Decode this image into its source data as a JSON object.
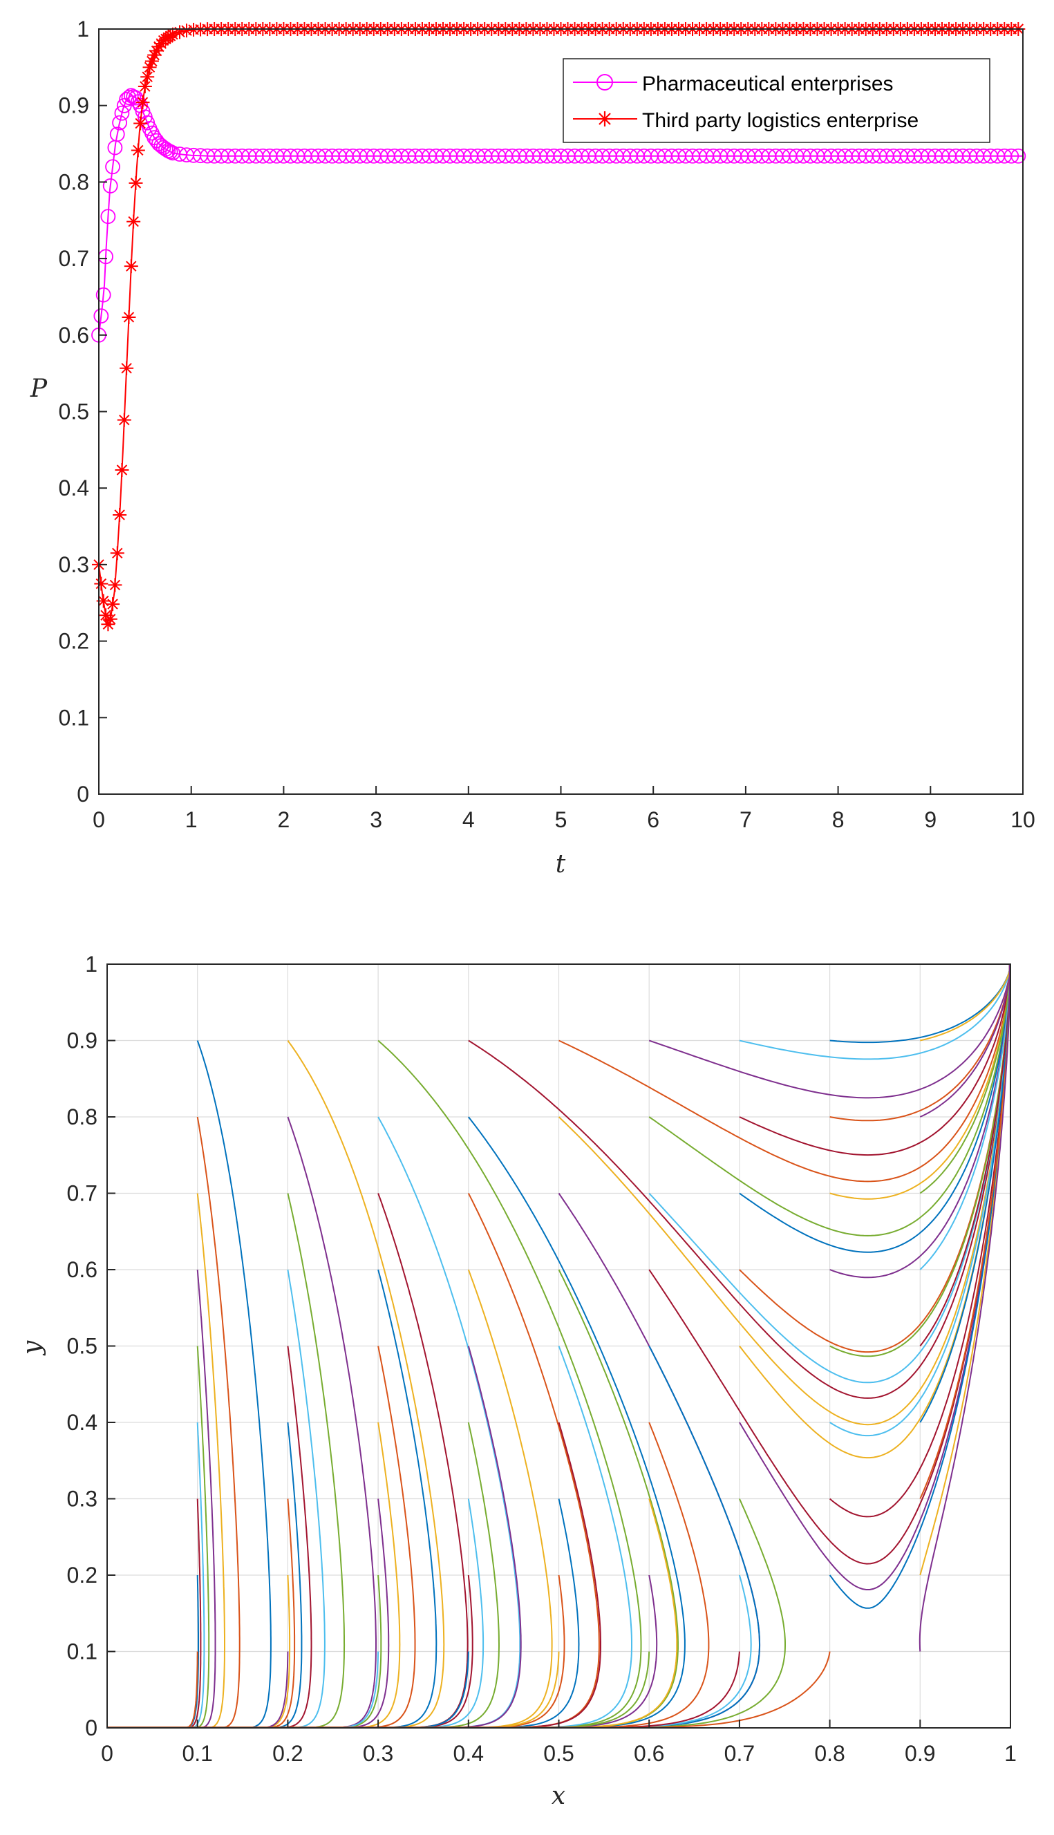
{
  "chart_data": [
    {
      "type": "line",
      "xlabel": "t",
      "ylabel": "P",
      "xlim": [
        0,
        10
      ],
      "ylim": [
        0,
        1
      ],
      "x_ticks": [
        "0",
        "1",
        "2",
        "3",
        "4",
        "5",
        "6",
        "7",
        "8",
        "9",
        "10"
      ],
      "y_ticks": [
        "0",
        "0.1",
        "0.2",
        "0.3",
        "0.4",
        "0.5",
        "0.6",
        "0.7",
        "0.8",
        "0.9",
        "1"
      ],
      "grid": false,
      "legend_position": "top-right",
      "series": [
        {
          "name": "Pharmaceutical enterprises",
          "color": "#ff00ff",
          "marker": "circle",
          "points": [
            [
              0,
              0.6
            ],
            [
              0.02,
              0.62
            ],
            [
              0.04,
              0.64
            ],
            [
              0.06,
              0.665
            ],
            [
              0.08,
              0.715
            ],
            [
              0.1,
              0.755
            ],
            [
              0.12,
              0.79
            ],
            [
              0.15,
              0.82
            ],
            [
              0.18,
              0.85
            ],
            [
              0.22,
              0.875
            ],
            [
              0.26,
              0.895
            ],
            [
              0.3,
              0.908
            ],
            [
              0.35,
              0.913
            ],
            [
              0.4,
              0.91
            ],
            [
              0.45,
              0.9
            ],
            [
              0.5,
              0.885
            ],
            [
              0.55,
              0.87
            ],
            [
              0.6,
              0.858
            ],
            [
              0.65,
              0.85
            ],
            [
              0.7,
              0.845
            ],
            [
              0.75,
              0.841
            ],
            [
              0.8,
              0.838
            ],
            [
              0.9,
              0.836
            ],
            [
              1.0,
              0.835
            ],
            [
              1.2,
              0.834
            ],
            [
              1.5,
              0.834
            ],
            [
              2,
              0.834
            ],
            [
              3,
              0.834
            ],
            [
              4,
              0.834
            ],
            [
              5,
              0.834
            ],
            [
              6,
              0.834
            ],
            [
              7,
              0.834
            ],
            [
              8,
              0.834
            ],
            [
              9,
              0.834
            ],
            [
              10,
              0.834
            ]
          ]
        },
        {
          "name": "Third party logistics enterprise",
          "color": "#ff0000",
          "marker": "star",
          "points": [
            [
              0,
              0.3
            ],
            [
              0.02,
              0.28
            ],
            [
              0.04,
              0.26
            ],
            [
              0.06,
              0.245
            ],
            [
              0.08,
              0.23
            ],
            [
              0.1,
              0.222
            ],
            [
              0.12,
              0.225
            ],
            [
              0.14,
              0.24
            ],
            [
              0.17,
              0.265
            ],
            [
              0.2,
              0.315
            ],
            [
              0.23,
              0.375
            ],
            [
              0.26,
              0.448
            ],
            [
              0.29,
              0.53
            ],
            [
              0.32,
              0.61
            ],
            [
              0.35,
              0.69
            ],
            [
              0.38,
              0.76
            ],
            [
              0.41,
              0.818
            ],
            [
              0.44,
              0.865
            ],
            [
              0.47,
              0.9
            ],
            [
              0.5,
              0.925
            ],
            [
              0.55,
              0.95
            ],
            [
              0.6,
              0.966
            ],
            [
              0.65,
              0.977
            ],
            [
              0.7,
              0.985
            ],
            [
              0.8,
              0.993
            ],
            [
              0.9,
              0.997
            ],
            [
              1.0,
              0.999
            ],
            [
              1.2,
              1.0
            ],
            [
              1.5,
              1.0
            ],
            [
              2,
              1.0
            ],
            [
              3,
              1.0
            ],
            [
              4,
              1.0
            ],
            [
              5,
              1.0
            ],
            [
              6,
              1.0
            ],
            [
              7,
              1.0
            ],
            [
              8,
              1.0
            ],
            [
              9,
              1.0
            ],
            [
              10,
              1.0
            ]
          ]
        }
      ]
    },
    {
      "type": "line",
      "xlabel": "x",
      "ylabel": "y",
      "xlim": [
        0,
        1
      ],
      "ylim": [
        0,
        1
      ],
      "x_ticks": [
        "0",
        "0.1",
        "0.2",
        "0.3",
        "0.4",
        "0.5",
        "0.6",
        "0.7",
        "0.8",
        "0.9",
        "1"
      ],
      "y_ticks": [
        "0",
        "0.1",
        "0.2",
        "0.3",
        "0.4",
        "0.5",
        "0.6",
        "0.7",
        "0.8",
        "0.9",
        "1"
      ],
      "grid": true,
      "palette": [
        "#0072bd",
        "#d95319",
        "#edb120",
        "#7e2f8e",
        "#77ac30",
        "#4dbeee",
        "#a2142f"
      ],
      "series": [
        {
          "x0": 0.1,
          "y0": 0.9
        },
        {
          "x0": 0.1,
          "y0": 0.8
        },
        {
          "x0": 0.1,
          "y0": 0.7
        },
        {
          "x0": 0.1,
          "y0": 0.6
        },
        {
          "x0": 0.1,
          "y0": 0.5
        },
        {
          "x0": 0.1,
          "y0": 0.4
        },
        {
          "x0": 0.1,
          "y0": 0.3
        },
        {
          "x0": 0.1,
          "y0": 0.2
        },
        {
          "x0": 0.1,
          "y0": 0.1
        },
        {
          "x0": 0.2,
          "y0": 0.9
        },
        {
          "x0": 0.2,
          "y0": 0.8
        },
        {
          "x0": 0.2,
          "y0": 0.7
        },
        {
          "x0": 0.2,
          "y0": 0.6
        },
        {
          "x0": 0.2,
          "y0": 0.5
        },
        {
          "x0": 0.2,
          "y0": 0.4
        },
        {
          "x0": 0.2,
          "y0": 0.3
        },
        {
          "x0": 0.2,
          "y0": 0.2
        },
        {
          "x0": 0.2,
          "y0": 0.1
        },
        {
          "x0": 0.3,
          "y0": 0.9
        },
        {
          "x0": 0.3,
          "y0": 0.8
        },
        {
          "x0": 0.3,
          "y0": 0.7
        },
        {
          "x0": 0.3,
          "y0": 0.6
        },
        {
          "x0": 0.3,
          "y0": 0.5
        },
        {
          "x0": 0.3,
          "y0": 0.4
        },
        {
          "x0": 0.3,
          "y0": 0.3
        },
        {
          "x0": 0.3,
          "y0": 0.2
        },
        {
          "x0": 0.3,
          "y0": 0.1
        },
        {
          "x0": 0.4,
          "y0": 0.9
        },
        {
          "x0": 0.4,
          "y0": 0.8
        },
        {
          "x0": 0.4,
          "y0": 0.7
        },
        {
          "x0": 0.4,
          "y0": 0.6
        },
        {
          "x0": 0.4,
          "y0": 0.5
        },
        {
          "x0": 0.4,
          "y0": 0.4
        },
        {
          "x0": 0.4,
          "y0": 0.3
        },
        {
          "x0": 0.4,
          "y0": 0.2
        },
        {
          "x0": 0.4,
          "y0": 0.1
        },
        {
          "x0": 0.5,
          "y0": 0.9
        },
        {
          "x0": 0.5,
          "y0": 0.8
        },
        {
          "x0": 0.5,
          "y0": 0.7
        },
        {
          "x0": 0.5,
          "y0": 0.6
        },
        {
          "x0": 0.5,
          "y0": 0.5
        },
        {
          "x0": 0.5,
          "y0": 0.4
        },
        {
          "x0": 0.5,
          "y0": 0.3
        },
        {
          "x0": 0.5,
          "y0": 0.2
        },
        {
          "x0": 0.5,
          "y0": 0.1
        },
        {
          "x0": 0.6,
          "y0": 0.9
        },
        {
          "x0": 0.6,
          "y0": 0.8
        },
        {
          "x0": 0.6,
          "y0": 0.7
        },
        {
          "x0": 0.6,
          "y0": 0.6
        },
        {
          "x0": 0.6,
          "y0": 0.5
        },
        {
          "x0": 0.6,
          "y0": 0.4
        },
        {
          "x0": 0.6,
          "y0": 0.3
        },
        {
          "x0": 0.6,
          "y0": 0.2
        },
        {
          "x0": 0.6,
          "y0": 0.1
        },
        {
          "x0": 0.7,
          "y0": 0.9
        },
        {
          "x0": 0.7,
          "y0": 0.8
        },
        {
          "x0": 0.7,
          "y0": 0.7
        },
        {
          "x0": 0.7,
          "y0": 0.6
        },
        {
          "x0": 0.7,
          "y0": 0.5
        },
        {
          "x0": 0.7,
          "y0": 0.4
        },
        {
          "x0": 0.7,
          "y0": 0.3
        },
        {
          "x0": 0.7,
          "y0": 0.2
        },
        {
          "x0": 0.7,
          "y0": 0.1
        },
        {
          "x0": 0.8,
          "y0": 0.9
        },
        {
          "x0": 0.8,
          "y0": 0.8
        },
        {
          "x0": 0.8,
          "y0": 0.7
        },
        {
          "x0": 0.8,
          "y0": 0.6
        },
        {
          "x0": 0.8,
          "y0": 0.5
        },
        {
          "x0": 0.8,
          "y0": 0.4
        },
        {
          "x0": 0.8,
          "y0": 0.3
        },
        {
          "x0": 0.8,
          "y0": 0.2
        },
        {
          "x0": 0.8,
          "y0": 0.1
        },
        {
          "x0": 0.9,
          "y0": 0.9
        },
        {
          "x0": 0.9,
          "y0": 0.8
        },
        {
          "x0": 0.9,
          "y0": 0.7
        },
        {
          "x0": 0.9,
          "y0": 0.6
        },
        {
          "x0": 0.9,
          "y0": 0.5
        },
        {
          "x0": 0.9,
          "y0": 0.4
        },
        {
          "x0": 0.9,
          "y0": 0.3
        },
        {
          "x0": 0.9,
          "y0": 0.2
        },
        {
          "x0": 0.9,
          "y0": 0.1
        }
      ],
      "trajectory_model": {
        "x_equilibrium": 0.84,
        "y_equilibrium": 1.0
      }
    }
  ]
}
